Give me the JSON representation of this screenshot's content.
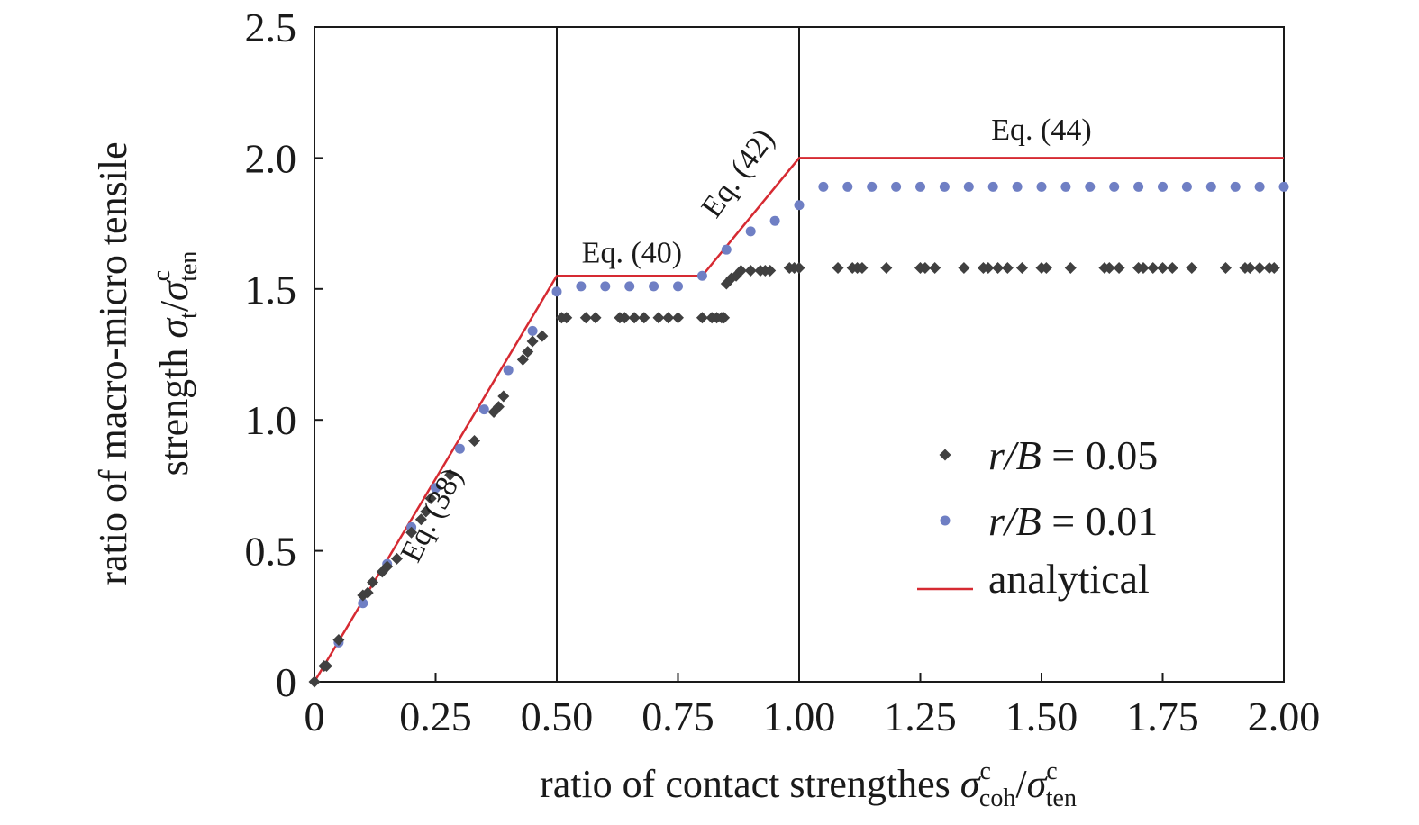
{
  "chart_data": {
    "type": "scatter",
    "xlabel": {
      "main": "ratio of contact strengthes ",
      "num": "σ",
      "num_sup": "c",
      "num_sub": "coh",
      "den": "σ",
      "den_sup": "c",
      "den_sub": "ten"
    },
    "ylabel": {
      "line1": "ratio of macro-micro tensile",
      "line2": "strength ",
      "num": "σ",
      "num_sub": "t",
      "den": "σ",
      "den_sup": "c",
      "den_sub": "ten"
    },
    "xlim": [
      0,
      2.0
    ],
    "ylim": [
      0,
      2.5
    ],
    "x_ticks": [
      0,
      0.25,
      0.5,
      0.75,
      1.0,
      1.25,
      1.5,
      1.75,
      2.0
    ],
    "x_tick_labels": [
      "0",
      "0.25",
      "0.50",
      "0.75",
      "1.00",
      "1.25",
      "1.50",
      "1.75",
      "2.00"
    ],
    "y_ticks": [
      0,
      0.5,
      1.0,
      1.5,
      2.0,
      2.5
    ],
    "y_tick_labels": [
      "0",
      "0.5",
      "1.0",
      "1.5",
      "2.0",
      "2.5"
    ],
    "vertical_lines": [
      0.5,
      1.0
    ],
    "grid": false,
    "legend_position": "lower-right",
    "legend": [
      {
        "marker": "diamond",
        "italic": "r/B",
        "text": " = 0.05",
        "color": "#404040"
      },
      {
        "marker": "circle",
        "italic": "r/B",
        "text": " = 0.01",
        "color": "#6f7fc4"
      },
      {
        "marker": "line",
        "text": "analytical",
        "color": "#d62a32"
      }
    ],
    "annotations": [
      {
        "text": "Eq. (38)",
        "x": 0.26,
        "y": 0.62,
        "angle": -63
      },
      {
        "text": "Eq. (40)",
        "x": 0.655,
        "y": 1.6,
        "angle": 0
      },
      {
        "text": "Eq. (42)",
        "x": 0.89,
        "y": 1.92,
        "angle": -54
      },
      {
        "text": "Eq. (44)",
        "x": 1.5,
        "y": 2.07,
        "angle": 0
      }
    ],
    "series": [
      {
        "name": "analytical",
        "kind": "line",
        "color": "#d62a32",
        "x": [
          0,
          0.5,
          0.8,
          1.0,
          2.0
        ],
        "y": [
          0,
          1.55,
          1.55,
          2.0,
          2.0
        ]
      },
      {
        "name": "r/B = 0.01",
        "kind": "circle",
        "color": "#6f7fc4",
        "x": [
          0.05,
          0.1,
          0.15,
          0.2,
          0.25,
          0.3,
          0.35,
          0.4,
          0.45,
          0.5,
          0.55,
          0.6,
          0.65,
          0.7,
          0.75,
          0.8,
          0.85,
          0.9,
          0.95,
          1.0,
          1.05,
          1.1,
          1.15,
          1.2,
          1.25,
          1.3,
          1.35,
          1.4,
          1.45,
          1.5,
          1.55,
          1.6,
          1.65,
          1.7,
          1.75,
          1.8,
          1.85,
          1.9,
          1.95,
          2.0
        ],
        "y": [
          0.15,
          0.3,
          0.45,
          0.59,
          0.74,
          0.89,
          1.04,
          1.19,
          1.34,
          1.49,
          1.51,
          1.51,
          1.51,
          1.51,
          1.51,
          1.55,
          1.65,
          1.72,
          1.76,
          1.82,
          1.89,
          1.89,
          1.89,
          1.89,
          1.89,
          1.89,
          1.89,
          1.89,
          1.89,
          1.89,
          1.89,
          1.89,
          1.89,
          1.89,
          1.89,
          1.89,
          1.89,
          1.89,
          1.89,
          1.89
        ]
      },
      {
        "name": "r/B = 0.05",
        "kind": "diamond",
        "color": "#404040",
        "x": [
          0,
          0.02,
          0.025,
          0.05,
          0.1,
          0.11,
          0.12,
          0.14,
          0.15,
          0.17,
          0.2,
          0.22,
          0.23,
          0.24,
          0.28,
          0.33,
          0.37,
          0.38,
          0.39,
          0.43,
          0.44,
          0.45,
          0.47,
          0.51,
          0.52,
          0.56,
          0.58,
          0.63,
          0.64,
          0.66,
          0.68,
          0.71,
          0.73,
          0.75,
          0.8,
          0.82,
          0.83,
          0.84,
          0.845,
          0.85,
          0.86,
          0.87,
          0.88,
          0.9,
          0.92,
          0.93,
          0.94,
          0.98,
          0.99,
          1.0,
          1.08,
          1.11,
          1.12,
          1.13,
          1.18,
          1.25,
          1.26,
          1.28,
          1.34,
          1.38,
          1.39,
          1.41,
          1.43,
          1.46,
          1.5,
          1.51,
          1.56,
          1.63,
          1.64,
          1.66,
          1.7,
          1.71,
          1.73,
          1.75,
          1.77,
          1.81,
          1.88,
          1.92,
          1.93,
          1.95,
          1.97,
          1.98
        ],
        "y": [
          0,
          0.06,
          0.06,
          0.16,
          0.33,
          0.34,
          0.38,
          0.42,
          0.44,
          0.47,
          0.57,
          0.62,
          0.65,
          0.7,
          0.79,
          0.92,
          1.03,
          1.05,
          1.09,
          1.23,
          1.26,
          1.3,
          1.32,
          1.39,
          1.39,
          1.39,
          1.39,
          1.39,
          1.39,
          1.39,
          1.39,
          1.39,
          1.39,
          1.39,
          1.39,
          1.39,
          1.39,
          1.39,
          1.39,
          1.52,
          1.54,
          1.55,
          1.57,
          1.57,
          1.57,
          1.57,
          1.57,
          1.58,
          1.58,
          1.58,
          1.58,
          1.58,
          1.58,
          1.58,
          1.58,
          1.58,
          1.58,
          1.58,
          1.58,
          1.58,
          1.58,
          1.58,
          1.58,
          1.58,
          1.58,
          1.58,
          1.58,
          1.58,
          1.58,
          1.58,
          1.58,
          1.58,
          1.58,
          1.58,
          1.58,
          1.58,
          1.58,
          1.58,
          1.58,
          1.58,
          1.58,
          1.58
        ]
      }
    ]
  }
}
